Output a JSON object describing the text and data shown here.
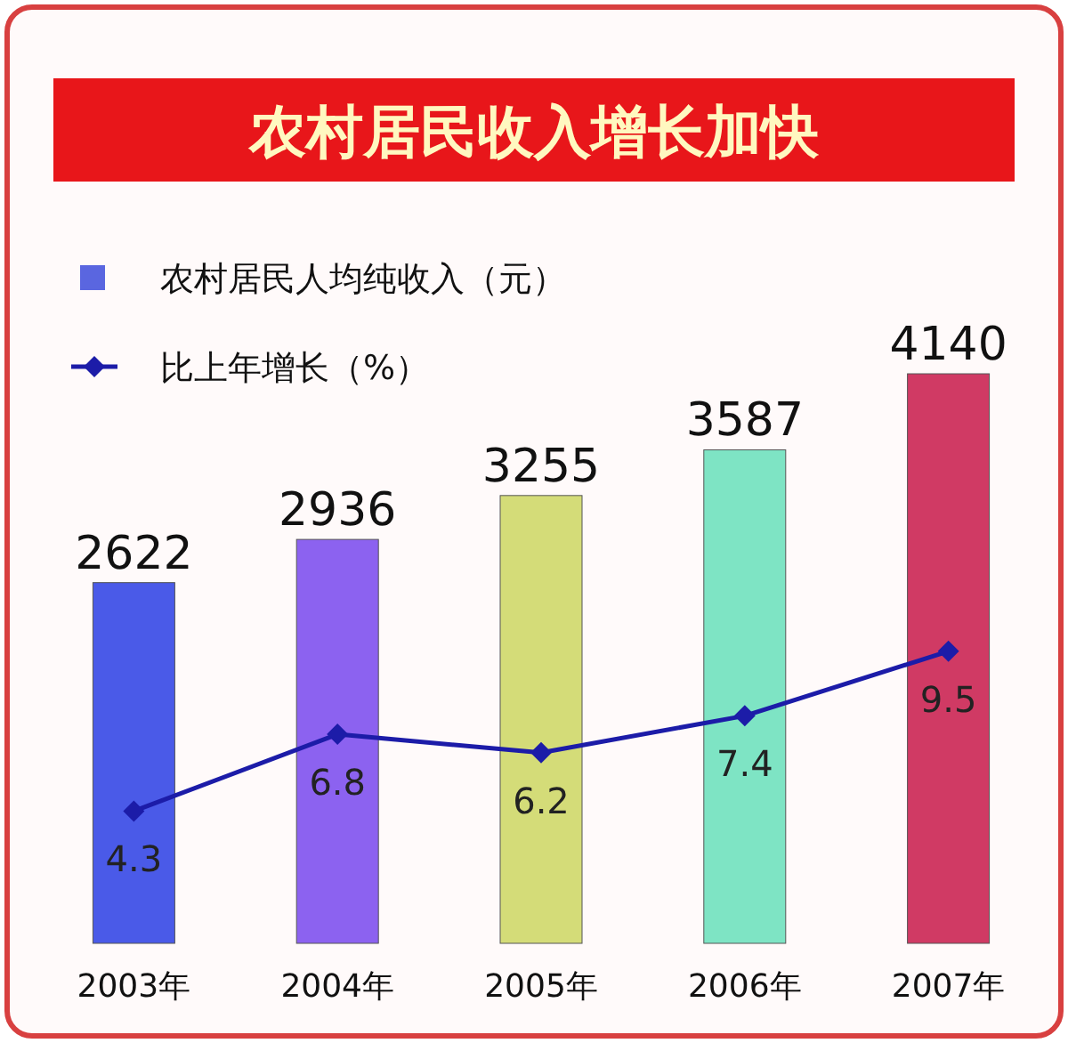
{
  "chart_data": {
    "type": "bar",
    "title": "农村居民收入增长加快",
    "categories": [
      "2003年",
      "2004年",
      "2005年",
      "2006年",
      "2007年"
    ],
    "series": [
      {
        "name": "农村居民人均纯收入（元）",
        "colors": [
          "#4a5ae8",
          "#8c62f0",
          "#d4dc78",
          "#7ee4c4",
          "#d03a64"
        ],
        "color": "#5a66e0",
        "values": [
          2622,
          2936,
          3255,
          3587,
          4140
        ]
      },
      {
        "name": "比上年增长（%）",
        "type": "line",
        "axis": "y2",
        "color": "#1c1ca8",
        "values": [
          4.3,
          6.8,
          6.2,
          7.4,
          9.5
        ]
      }
    ],
    "data_labels": true,
    "legend": "top left",
    "marker": "diamond"
  }
}
